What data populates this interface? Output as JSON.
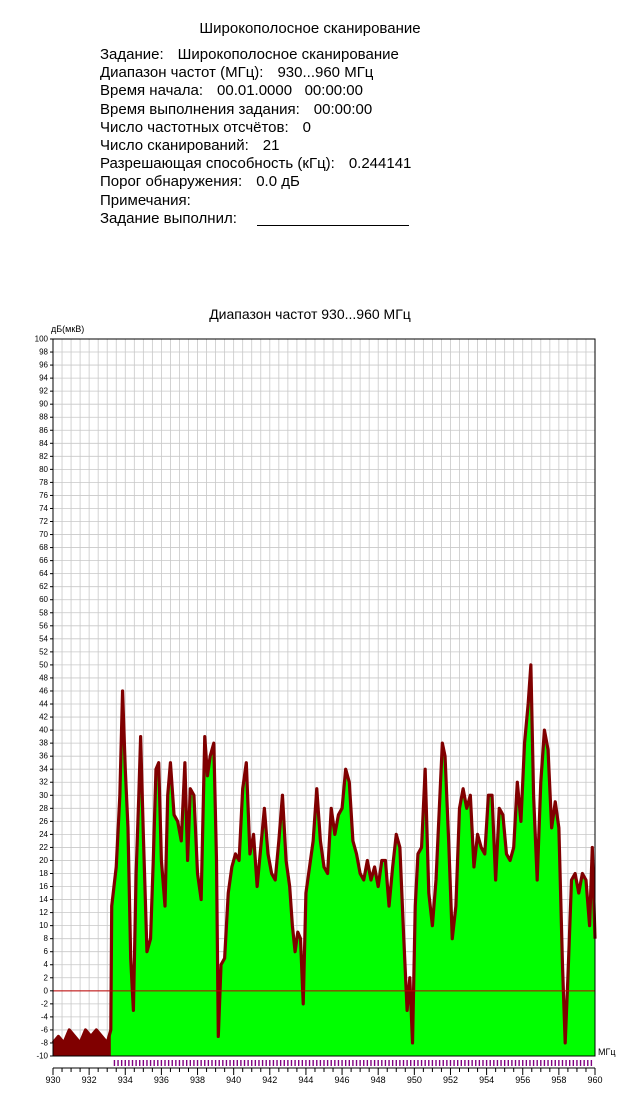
{
  "report": {
    "title": "Широкополосное сканирование",
    "rows": [
      {
        "label": "Задание:",
        "value": "Широкополосное сканирование"
      },
      {
        "label": "Диапазон частот (МГц):",
        "value": "930...960 МГц"
      },
      {
        "label": "Время начала:",
        "value": "00.01.0000   00:00:00"
      },
      {
        "label": "Время выполнения задания:",
        "value": "00:00:00"
      },
      {
        "label": "Число частотных отсчётов:",
        "value": "0"
      },
      {
        "label": "Число сканирований:",
        "value": "21"
      },
      {
        "label": "Разрешающая способность (кГц):",
        "value": "0.244141"
      },
      {
        "label": "Порог обнаружения:",
        "value": "0.0 дБ"
      },
      {
        "label": "Примечания:",
        "value": ""
      },
      {
        "label": "Задание выполнил:",
        "value": ""
      }
    ]
  },
  "chart_data": {
    "type": "area",
    "title": "Диапазон частот 930...960 МГц",
    "xlabel": "МГц",
    "ylabel": "дБ(мкВ)",
    "xlim": [
      930,
      960
    ],
    "ylim": [
      -10,
      100
    ],
    "x_ticks": [
      930,
      932,
      934,
      936,
      938,
      940,
      942,
      944,
      946,
      948,
      950,
      952,
      954,
      956,
      958,
      960
    ],
    "y_tick_step": 2,
    "threshold": 0,
    "grid": true,
    "colors": {
      "fill": "#00ff00",
      "peak": "#800000",
      "threshold": "#c00000",
      "grid": "#c8c8c8",
      "marker": "#800080"
    },
    "series": [
      {
        "values": [
          [
            930.0,
            -8
          ],
          [
            930.3,
            -7
          ],
          [
            930.6,
            -8
          ],
          [
            930.9,
            -6
          ],
          [
            931.2,
            -7
          ],
          [
            931.5,
            -8
          ],
          [
            931.8,
            -6
          ],
          [
            932.1,
            -7
          ],
          [
            932.4,
            -6
          ],
          [
            932.7,
            -7
          ],
          [
            933.0,
            -8
          ],
          [
            933.2,
            -6
          ],
          [
            933.25,
            13
          ],
          [
            933.5,
            19
          ],
          [
            933.7,
            30
          ],
          [
            933.85,
            46
          ],
          [
            934.0,
            34
          ],
          [
            934.15,
            25
          ],
          [
            934.3,
            5
          ],
          [
            934.45,
            -3
          ],
          [
            934.6,
            18
          ],
          [
            934.75,
            30
          ],
          [
            934.85,
            39
          ],
          [
            935.0,
            24
          ],
          [
            935.2,
            6
          ],
          [
            935.4,
            8
          ],
          [
            935.55,
            20
          ],
          [
            935.7,
            34
          ],
          [
            935.85,
            35
          ],
          [
            936.0,
            20
          ],
          [
            936.2,
            13
          ],
          [
            936.35,
            30
          ],
          [
            936.5,
            35
          ],
          [
            936.7,
            27
          ],
          [
            936.9,
            26
          ],
          [
            937.1,
            23
          ],
          [
            937.3,
            35
          ],
          [
            937.45,
            20
          ],
          [
            937.6,
            31
          ],
          [
            937.8,
            30
          ],
          [
            938.0,
            18
          ],
          [
            938.2,
            14
          ],
          [
            938.4,
            39
          ],
          [
            938.55,
            33
          ],
          [
            938.7,
            36
          ],
          [
            938.9,
            38
          ],
          [
            939.05,
            20
          ],
          [
            939.15,
            -7
          ],
          [
            939.3,
            4
          ],
          [
            939.5,
            5
          ],
          [
            939.7,
            15
          ],
          [
            939.9,
            19
          ],
          [
            940.1,
            21
          ],
          [
            940.3,
            20
          ],
          [
            940.5,
            31
          ],
          [
            940.7,
            35
          ],
          [
            940.9,
            21
          ],
          [
            941.1,
            24
          ],
          [
            941.3,
            16
          ],
          [
            941.5,
            22
          ],
          [
            941.7,
            28
          ],
          [
            941.9,
            21
          ],
          [
            942.1,
            18
          ],
          [
            942.3,
            17
          ],
          [
            942.5,
            23
          ],
          [
            942.7,
            30
          ],
          [
            942.9,
            20
          ],
          [
            943.1,
            16
          ],
          [
            943.25,
            10
          ],
          [
            943.4,
            6
          ],
          [
            943.55,
            9
          ],
          [
            943.7,
            8
          ],
          [
            943.85,
            -2
          ],
          [
            944.0,
            15
          ],
          [
            944.2,
            19
          ],
          [
            944.4,
            23
          ],
          [
            944.6,
            31
          ],
          [
            944.8,
            23
          ],
          [
            945.0,
            19
          ],
          [
            945.2,
            18
          ],
          [
            945.4,
            28
          ],
          [
            945.6,
            24
          ],
          [
            945.8,
            27
          ],
          [
            946.0,
            28
          ],
          [
            946.2,
            34
          ],
          [
            946.4,
            32
          ],
          [
            946.6,
            23
          ],
          [
            946.8,
            21
          ],
          [
            947.0,
            18
          ],
          [
            947.2,
            17
          ],
          [
            947.4,
            20
          ],
          [
            947.6,
            17
          ],
          [
            947.8,
            19
          ],
          [
            948.0,
            16
          ],
          [
            948.2,
            20
          ],
          [
            948.4,
            20
          ],
          [
            948.6,
            13
          ],
          [
            948.8,
            19
          ],
          [
            949.0,
            24
          ],
          [
            949.2,
            22
          ],
          [
            949.4,
            9
          ],
          [
            949.6,
            -3
          ],
          [
            949.75,
            2
          ],
          [
            949.9,
            -8
          ],
          [
            950.05,
            13
          ],
          [
            950.2,
            21
          ],
          [
            950.4,
            22
          ],
          [
            950.6,
            34
          ],
          [
            950.8,
            15
          ],
          [
            951.0,
            10
          ],
          [
            951.2,
            17
          ],
          [
            951.4,
            29
          ],
          [
            951.55,
            38
          ],
          [
            951.7,
            36
          ],
          [
            951.9,
            23
          ],
          [
            952.1,
            8
          ],
          [
            952.3,
            13
          ],
          [
            952.5,
            28
          ],
          [
            952.7,
            31
          ],
          [
            952.9,
            28
          ],
          [
            953.1,
            30
          ],
          [
            953.3,
            19
          ],
          [
            953.5,
            24
          ],
          [
            953.7,
            22
          ],
          [
            953.9,
            21
          ],
          [
            954.1,
            30
          ],
          [
            954.3,
            30
          ],
          [
            954.5,
            17
          ],
          [
            954.7,
            28
          ],
          [
            954.9,
            27
          ],
          [
            955.1,
            21
          ],
          [
            955.3,
            20
          ],
          [
            955.5,
            22
          ],
          [
            955.7,
            32
          ],
          [
            955.9,
            26
          ],
          [
            956.1,
            38
          ],
          [
            956.3,
            44
          ],
          [
            956.45,
            50
          ],
          [
            956.6,
            30
          ],
          [
            956.8,
            17
          ],
          [
            957.0,
            32
          ],
          [
            957.2,
            40
          ],
          [
            957.4,
            37
          ],
          [
            957.6,
            25
          ],
          [
            957.8,
            29
          ],
          [
            958.0,
            25
          ],
          [
            958.2,
            4
          ],
          [
            958.35,
            -8
          ],
          [
            958.5,
            2
          ],
          [
            958.7,
            17
          ],
          [
            958.9,
            18
          ],
          [
            959.1,
            15
          ],
          [
            959.3,
            18
          ],
          [
            959.5,
            17
          ],
          [
            959.7,
            10
          ],
          [
            959.85,
            22
          ],
          [
            960.0,
            8
          ]
        ]
      }
    ]
  }
}
